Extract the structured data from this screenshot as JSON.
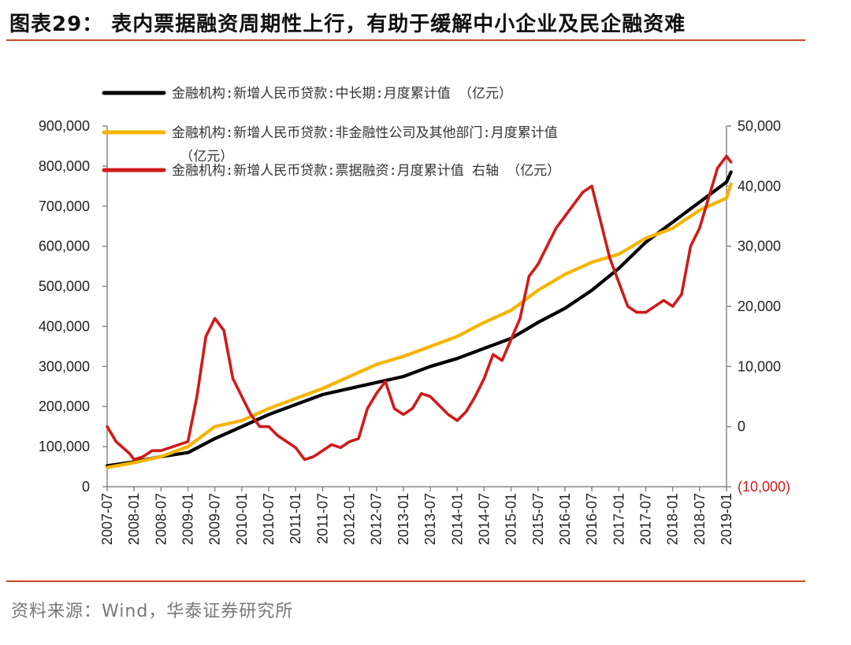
{
  "title": "图表29： 表内票据融资周期性上行，有助于缓解中小企业及民企融资难",
  "source": "资料来源：Wind，华泰证券研究所",
  "chart_data": {
    "type": "line",
    "x_ticks": [
      "2007-07",
      "2008-01",
      "2008-07",
      "2009-01",
      "2009-07",
      "2010-01",
      "2010-07",
      "2011-01",
      "2011-07",
      "2012-01",
      "2012-07",
      "2013-01",
      "2013-07",
      "2014-01",
      "2014-07",
      "2015-01",
      "2015-07",
      "2016-01",
      "2016-07",
      "2017-01",
      "2017-07",
      "2018-01",
      "2018-07",
      "2019-01"
    ],
    "y_left": {
      "ticks": [
        "900,000",
        "800,000",
        "700,000",
        "600,000",
        "500,000",
        "400,000",
        "300,000",
        "200,000",
        "100,000",
        "0"
      ],
      "lim": [
        0,
        900000
      ]
    },
    "y_right": {
      "ticks": [
        "50,000",
        "40,000",
        "30,000",
        "20,000",
        "10,000",
        "0",
        "(10,000)"
      ],
      "lim": [
        -10000,
        50000
      ],
      "color": "#d01a1a"
    },
    "legend": {
      "placement": "top-left"
    },
    "series": [
      {
        "name": "金融机构:新增人民币贷款:中长期:月度累计值 （亿元）",
        "legend_lines": [
          "金融机构:新增人民币贷款:中长期:月度累计值 （亿元）"
        ],
        "color": "#000000",
        "axis": "left",
        "x": [
          "2007-07",
          "2008-01",
          "2008-07",
          "2009-01",
          "2009-07",
          "2010-01",
          "2010-07",
          "2011-01",
          "2011-07",
          "2012-01",
          "2012-07",
          "2013-01",
          "2013-07",
          "2014-01",
          "2014-07",
          "2015-01",
          "2015-07",
          "2016-01",
          "2016-07",
          "2017-01",
          "2017-07",
          "2018-01",
          "2018-07",
          "2019-01",
          "2019-02"
        ],
        "values": [
          52000,
          62000,
          75000,
          85000,
          120000,
          150000,
          180000,
          205000,
          230000,
          245000,
          260000,
          275000,
          300000,
          320000,
          345000,
          370000,
          410000,
          445000,
          490000,
          545000,
          610000,
          660000,
          710000,
          760000,
          785000
        ]
      },
      {
        "name": "金融机构:新增人民币贷款:非金融性公司及其他部门:月度累计值 （亿元）",
        "legend_lines": [
          "金融机构:新增人民币贷款:非金融性公司及其他部门:月度累计值",
          "（亿元）"
        ],
        "color": "#f5b400",
        "axis": "left",
        "x": [
          "2007-07",
          "2008-01",
          "2008-07",
          "2009-01",
          "2009-07",
          "2010-01",
          "2010-07",
          "2011-01",
          "2011-07",
          "2012-01",
          "2012-07",
          "2013-01",
          "2013-07",
          "2014-01",
          "2014-07",
          "2015-01",
          "2015-07",
          "2016-01",
          "2016-07",
          "2017-01",
          "2017-07",
          "2018-01",
          "2018-07",
          "2019-01",
          "2019-02"
        ],
        "values": [
          48000,
          60000,
          75000,
          100000,
          150000,
          165000,
          195000,
          220000,
          245000,
          275000,
          305000,
          325000,
          350000,
          375000,
          410000,
          440000,
          490000,
          530000,
          560000,
          580000,
          620000,
          645000,
          690000,
          720000,
          755000
        ]
      },
      {
        "name": "金融机构:新增人民币贷款:票据融资:月度累计值 右轴 （亿元）",
        "legend_lines": [
          "金融机构:新增人民币贷款:票据融资:月度累计值 右轴 （亿元）"
        ],
        "color": "#d01a1a",
        "axis": "right",
        "x": [
          "2007-07",
          "2007-09",
          "2007-12",
          "2008-01",
          "2008-03",
          "2008-05",
          "2008-07",
          "2008-09",
          "2008-11",
          "2009-01",
          "2009-03",
          "2009-05",
          "2009-07",
          "2009-09",
          "2009-11",
          "2010-01",
          "2010-03",
          "2010-05",
          "2010-07",
          "2010-09",
          "2010-11",
          "2011-01",
          "2011-03",
          "2011-05",
          "2011-07",
          "2011-09",
          "2011-11",
          "2012-01",
          "2012-03",
          "2012-05",
          "2012-07",
          "2012-09",
          "2012-11",
          "2013-01",
          "2013-03",
          "2013-05",
          "2013-07",
          "2013-09",
          "2013-11",
          "2014-01",
          "2014-03",
          "2014-05",
          "2014-07",
          "2014-09",
          "2014-11",
          "2015-01",
          "2015-03",
          "2015-05",
          "2015-07",
          "2015-09",
          "2015-11",
          "2016-01",
          "2016-03",
          "2016-05",
          "2016-07",
          "2016-09",
          "2016-11",
          "2017-01",
          "2017-03",
          "2017-05",
          "2017-07",
          "2017-09",
          "2017-11",
          "2018-01",
          "2018-03",
          "2018-05",
          "2018-07",
          "2018-09",
          "2018-11",
          "2019-01",
          "2019-02"
        ],
        "values": [
          0,
          -2500,
          -4500,
          -5500,
          -5000,
          -4000,
          -4000,
          -3500,
          -3000,
          -2500,
          5000,
          15000,
          18000,
          16000,
          8000,
          5000,
          2000,
          0,
          0,
          -1500,
          -2500,
          -3500,
          -5500,
          -5000,
          -4000,
          -3000,
          -3500,
          -2500,
          -2000,
          3000,
          5500,
          7500,
          3000,
          2000,
          3000,
          5500,
          5000,
          3500,
          2000,
          1000,
          2500,
          5000,
          8000,
          12000,
          11000,
          14500,
          18000,
          25000,
          27000,
          30000,
          33000,
          35000,
          37000,
          39000,
          40000,
          34000,
          28000,
          24000,
          20000,
          19000,
          19000,
          20000,
          21000,
          20000,
          22000,
          30000,
          33000,
          38000,
          43000,
          45000,
          44000
        ]
      }
    ]
  }
}
